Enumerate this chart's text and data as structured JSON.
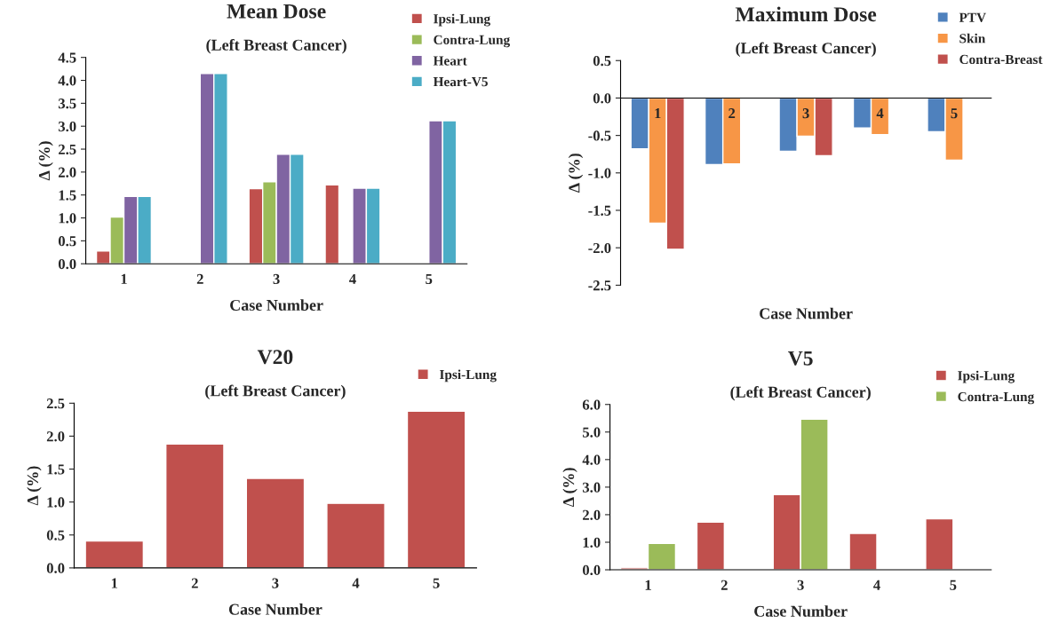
{
  "chart_data": [
    {
      "type": "bar",
      "title": "Mean Dose",
      "subtitle": "(Left Breast Cancer)",
      "xlabel": "Case Number",
      "ylabel": "Δ (%)",
      "categories": [
        "1",
        "2",
        "3",
        "4",
        "5"
      ],
      "series": [
        {
          "name": "Ipsi-Lung",
          "color": "#c0504d",
          "values": [
            0.28,
            null,
            1.64,
            1.72,
            null
          ]
        },
        {
          "name": "Contra-Lung",
          "color": "#9bbb59",
          "values": [
            1.02,
            null,
            1.79,
            null,
            null
          ]
        },
        {
          "name": "Heart",
          "color": "#8064a2",
          "values": [
            1.47,
            4.15,
            2.39,
            1.65,
            3.12
          ]
        },
        {
          "name": "Heart-V5",
          "color": "#4bacc6",
          "values": [
            1.47,
            4.15,
            2.39,
            1.65,
            3.12
          ]
        }
      ],
      "ylim": [
        0,
        4.5
      ],
      "yticks": [
        {
          "value": 0,
          "label": "0.0"
        },
        0.5,
        {
          "value": 1,
          "label": "1.0"
        },
        1.5,
        {
          "value": 2,
          "label": "2.0"
        },
        2.5,
        {
          "value": 3,
          "label": "3.0"
        },
        3.5,
        {
          "value": 4,
          "label": "4.0"
        },
        4.5
      ],
      "grid": false,
      "legend": "top right"
    },
    {
      "type": "bar",
      "title": "Maximum Dose",
      "subtitle": "(Left Breast Cancer)",
      "xlabel": "Case Number",
      "ylabel": "Δ (%)",
      "categories": [
        "1",
        "2",
        "3",
        "4",
        "5"
      ],
      "series": [
        {
          "name": "PTV",
          "color": "#4f81bd",
          "values": [
            -0.68,
            -0.89,
            -0.71,
            -0.4,
            -0.45
          ]
        },
        {
          "name": "Skin",
          "color": "#f79646",
          "values": [
            -1.67,
            -0.88,
            -0.51,
            -0.49,
            -0.83
          ]
        },
        {
          "name": "Contra-Breast",
          "color": "#c0504d",
          "values": [
            -2.02,
            null,
            -0.77,
            null,
            null
          ]
        }
      ],
      "ylim": [
        -2.5,
        0.5
      ],
      "yticks": [
        -2.5,
        {
          "value": -2,
          "label": "-2.0"
        },
        -1.5,
        {
          "value": -1,
          "label": "-1.0"
        },
        -0.5,
        {
          "value": 0,
          "label": "0.0"
        },
        0.5
      ],
      "grid": false,
      "legend": "top right"
    },
    {
      "type": "bar",
      "title": "V20",
      "subtitle": "(Left Breast Cancer)",
      "xlabel": "Case Number",
      "ylabel": "Δ (%)",
      "categories": [
        "1",
        "2",
        "3",
        "4",
        "5"
      ],
      "series": [
        {
          "name": "Ipsi-Lung",
          "color": "#c0504d",
          "values": [
            0.41,
            1.88,
            1.36,
            0.98,
            2.38
          ]
        }
      ],
      "ylim": [
        0,
        2.5
      ],
      "yticks": [
        {
          "value": 0,
          "label": "0.0"
        },
        0.5,
        {
          "value": 1,
          "label": "1.0"
        },
        1.5,
        {
          "value": 2,
          "label": "2.0"
        },
        2.5
      ],
      "grid": false,
      "legend": "top right"
    },
    {
      "type": "bar",
      "title": "V5",
      "subtitle": "(Left Breast Cancer)",
      "xlabel": "Case Number",
      "ylabel": "Δ (%)",
      "categories": [
        "1",
        "2",
        "3",
        "4",
        "5"
      ],
      "series": [
        {
          "name": "Ipsi-Lung",
          "color": "#c0504d",
          "values": [
            0.07,
            1.73,
            2.73,
            1.32,
            1.85
          ]
        },
        {
          "name": "Contra-Lung",
          "color": "#9bbb59",
          "values": [
            0.96,
            null,
            5.47,
            null,
            null
          ]
        }
      ],
      "ylim": [
        0,
        6
      ],
      "yticks": [
        {
          "value": 0,
          "label": "0.0"
        },
        {
          "value": 1,
          "label": "1.0"
        },
        {
          "value": 2,
          "label": "2.0"
        },
        {
          "value": 3,
          "label": "3.0"
        },
        {
          "value": 4,
          "label": "4.0"
        },
        {
          "value": 5,
          "label": "5.0"
        },
        {
          "value": 6,
          "label": "6.0"
        }
      ],
      "grid": false,
      "legend": "top right"
    }
  ]
}
